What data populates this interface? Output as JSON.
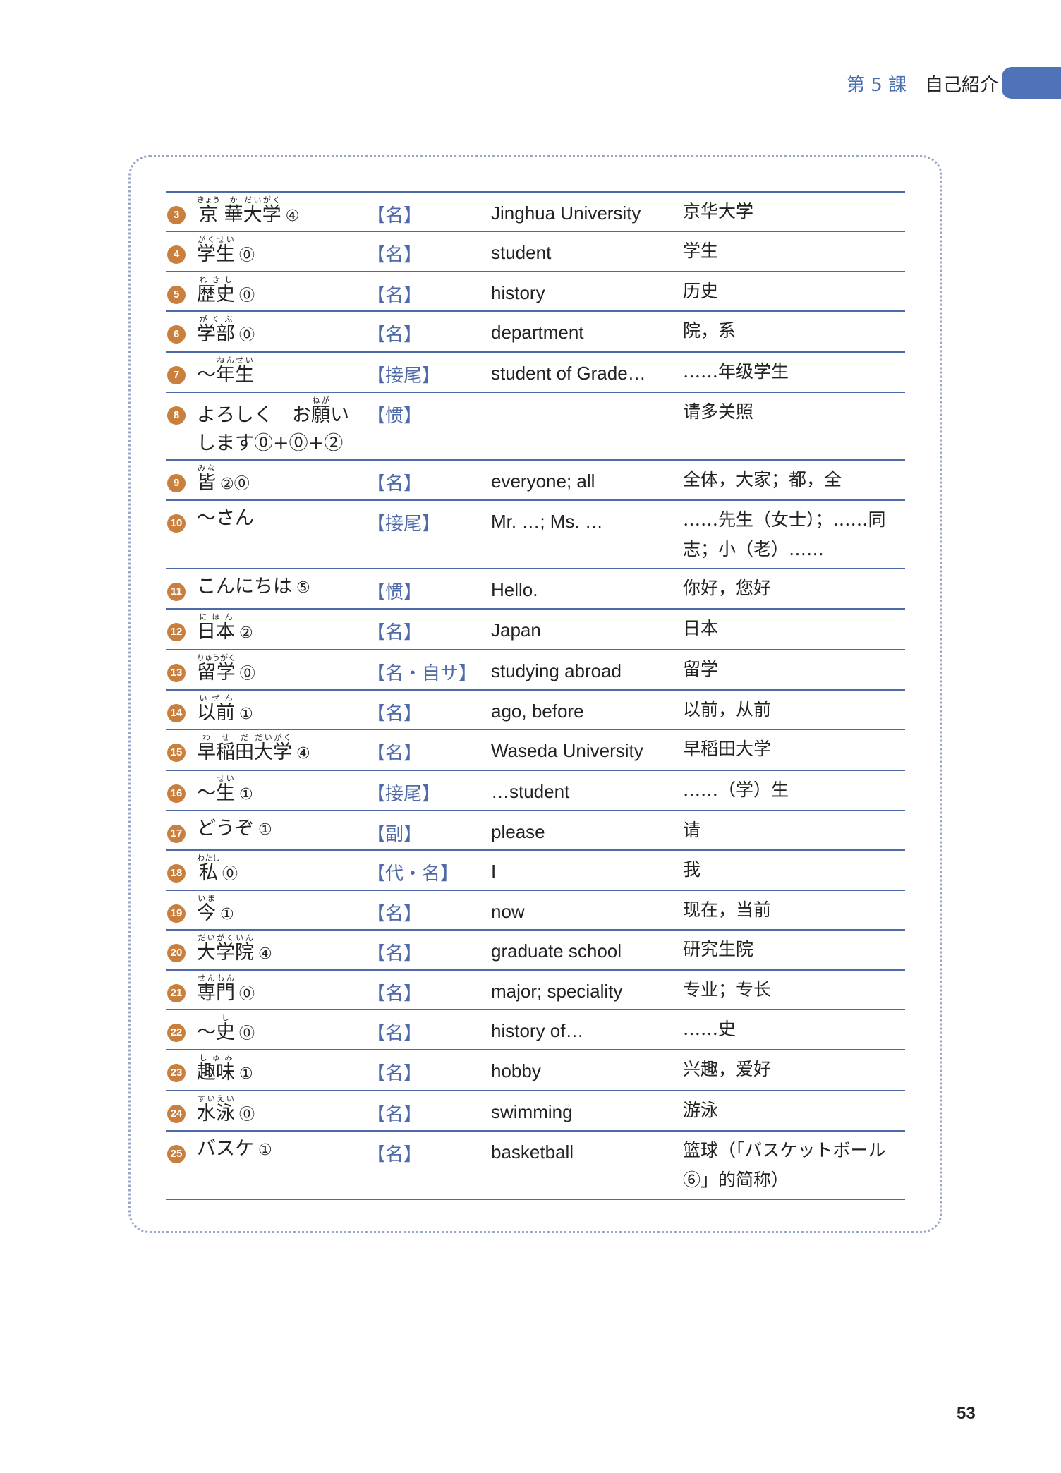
{
  "header": {
    "lesson": "第 5 課",
    "title": "自己紹介",
    "tab_color": "#4f72b8"
  },
  "colors": {
    "accent": "#4f6aa8",
    "number_badge": "#c9803e"
  },
  "rows": [
    {
      "num": "3",
      "jp": [
        {
          "b": "京",
          "r": "きょう"
        },
        {
          "b": " "
        },
        {
          "b": "華",
          "r": "か"
        },
        {
          "b": "大学",
          "r": "だいがく"
        }
      ],
      "acc": "④",
      "pos": "【名】",
      "en": "Jinghua University",
      "zh": "京华大学"
    },
    {
      "num": "4",
      "jp": [
        {
          "b": "学生",
          "r": "がくせい"
        }
      ],
      "acc": "⓪",
      "pos": "【名】",
      "en": "student",
      "zh": "学生"
    },
    {
      "num": "5",
      "jp": [
        {
          "b": "歴史",
          "r": "れきし"
        }
      ],
      "acc": "⓪",
      "pos": "【名】",
      "en": "history",
      "zh": "历史"
    },
    {
      "num": "6",
      "jp": [
        {
          "b": "学部",
          "r": "がくぶ"
        }
      ],
      "acc": "⓪",
      "pos": "【名】",
      "en": "department",
      "zh": "院，系"
    },
    {
      "num": "7",
      "jp": [
        {
          "b": "～"
        },
        {
          "b": "年生",
          "r": "ねんせい"
        }
      ],
      "acc": "",
      "pos": "【接尾】",
      "en": "student of Grade…",
      "zh": "……年级学生"
    },
    {
      "num": "8",
      "jp": [
        {
          "b": "よろしく　お"
        },
        {
          "b": "願",
          "r": "ねが"
        },
        {
          "b": "い"
        }
      ],
      "jp2": "します⓪+⓪+②",
      "acc": "",
      "pos": "【惯】",
      "en": "",
      "zh": "请多关照",
      "tall": true
    },
    {
      "num": "9",
      "jp": [
        {
          "b": "皆",
          "r": "みな"
        }
      ],
      "acc": "②⓪",
      "pos": "【名】",
      "en": "everyone; all",
      "zh": "全体，大家；都，全"
    },
    {
      "num": "10",
      "jp": [
        {
          "b": "～さん"
        }
      ],
      "acc": "",
      "pos": "【接尾】",
      "en": "Mr. …; Ms. …",
      "zh": "……先生（女士）；……同志；小（老）……",
      "tall": true
    },
    {
      "num": "11",
      "jp": [
        {
          "b": "こんにちは"
        }
      ],
      "acc": "⑤",
      "pos": "【惯】",
      "en": "Hello.",
      "zh": "你好，您好"
    },
    {
      "num": "12",
      "jp": [
        {
          "b": "日本",
          "r": "にほん"
        }
      ],
      "acc": "②",
      "pos": "【名】",
      "en": "Japan",
      "zh": "日本"
    },
    {
      "num": "13",
      "jp": [
        {
          "b": "留学",
          "r": "りゅうがく"
        }
      ],
      "acc": "⓪",
      "pos": "【名・自サ】",
      "en": "studying abroad",
      "zh": "留学"
    },
    {
      "num": "14",
      "jp": [
        {
          "b": "以前",
          "r": "いぜん"
        }
      ],
      "acc": "①",
      "pos": "【名】",
      "en": "ago, before",
      "zh": "以前，从前"
    },
    {
      "num": "15",
      "jp": [
        {
          "b": "早稲田",
          "r": "わせだ"
        },
        {
          "b": "大学",
          "r": "だいがく"
        }
      ],
      "acc": "④",
      "pos": "【名】",
      "en": "Waseda University",
      "zh": "早稻田大学"
    },
    {
      "num": "16",
      "jp": [
        {
          "b": "～"
        },
        {
          "b": "生",
          "r": "せい"
        }
      ],
      "acc": "①",
      "pos": "【接尾】",
      "en": "…student",
      "zh": "……（学）生"
    },
    {
      "num": "17",
      "jp": [
        {
          "b": "どうぞ"
        }
      ],
      "acc": "①",
      "pos": "【副】",
      "en": "please",
      "zh": "请"
    },
    {
      "num": "18",
      "jp": [
        {
          "b": "私",
          "r": "わたし"
        }
      ],
      "acc": "⓪",
      "pos": "【代・名】",
      "en": "I",
      "zh": "我"
    },
    {
      "num": "19",
      "jp": [
        {
          "b": "今",
          "r": "いま"
        }
      ],
      "acc": "①",
      "pos": "【名】",
      "en": "now",
      "zh": "现在，当前"
    },
    {
      "num": "20",
      "jp": [
        {
          "b": "大学院",
          "r": "だいがくいん"
        }
      ],
      "acc": "④",
      "pos": "【名】",
      "en": "graduate school",
      "zh": "研究生院"
    },
    {
      "num": "21",
      "jp": [
        {
          "b": "専門",
          "r": "せんもん"
        }
      ],
      "acc": "⓪",
      "pos": "【名】",
      "en": "major; speciality",
      "zh": "专业；专长"
    },
    {
      "num": "22",
      "jp": [
        {
          "b": "～"
        },
        {
          "b": "史",
          "r": "し"
        }
      ],
      "acc": "⓪",
      "pos": "【名】",
      "en": "history of…",
      "zh": "……史"
    },
    {
      "num": "23",
      "jp": [
        {
          "b": "趣味",
          "r": "しゅみ"
        }
      ],
      "acc": "①",
      "pos": "【名】",
      "en": "hobby",
      "zh": "兴趣，爱好"
    },
    {
      "num": "24",
      "jp": [
        {
          "b": "水泳",
          "r": "すいえい"
        }
      ],
      "acc": "⓪",
      "pos": "【名】",
      "en": "swimming",
      "zh": "游泳"
    },
    {
      "num": "25",
      "jp": [
        {
          "b": "バスケ"
        }
      ],
      "acc": "①",
      "pos": "【名】",
      "en": "basketball",
      "zh": "篮球（「バスケットボール⑥」的简称）",
      "tall": true
    }
  ],
  "page_number": "53"
}
